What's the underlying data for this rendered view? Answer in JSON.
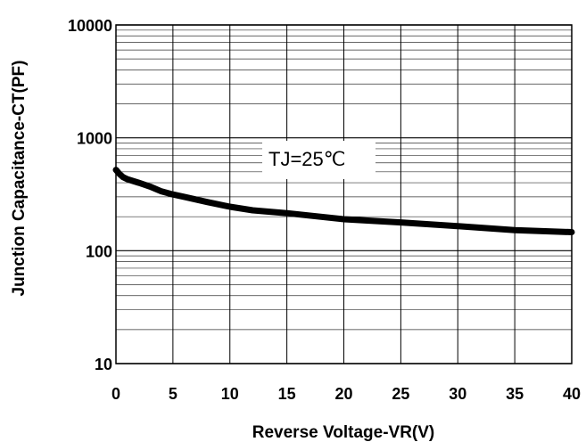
{
  "chart_data": {
    "type": "line",
    "title": "",
    "xlabel": "Reverse Voltage-VR(V)",
    "ylabel": "Junction Capacitance-CT(PF)",
    "xlim": [
      0,
      40
    ],
    "ylim": [
      10,
      10000
    ],
    "yscale": "log",
    "grid": true,
    "x_ticks": [
      "0",
      "5",
      "10",
      "15",
      "20",
      "25",
      "30",
      "35",
      "40"
    ],
    "y_ticks": [
      "10",
      "100",
      "1000",
      "10000"
    ],
    "annotation": "TJ=25℃",
    "series": [
      {
        "x": [
          0,
          0.3,
          0.6,
          1,
          2,
          3,
          4,
          5,
          6,
          8,
          10,
          12,
          15,
          20,
          25,
          30,
          35,
          40
        ],
        "y": [
          520,
          480,
          450,
          430,
          400,
          370,
          335,
          315,
          300,
          270,
          245,
          228,
          215,
          190,
          178,
          165,
          152,
          146
        ]
      }
    ],
    "line_color": "#000000"
  }
}
